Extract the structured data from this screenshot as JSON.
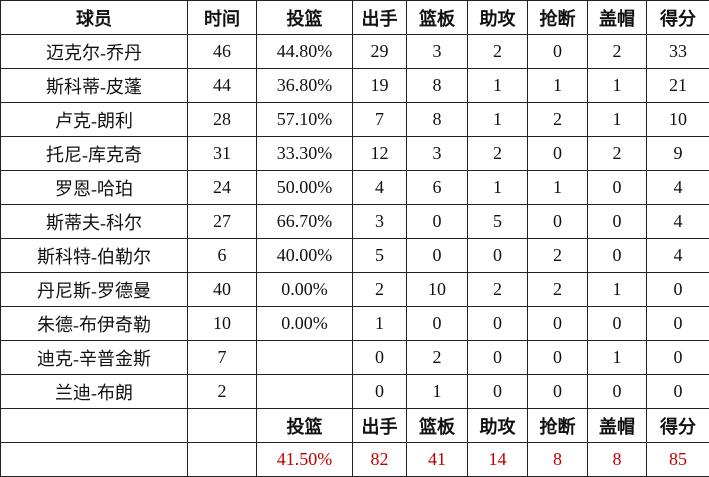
{
  "headers": [
    "球员",
    "时间",
    "投篮",
    "出手",
    "篮板",
    "助攻",
    "抢断",
    "盖帽",
    "得分"
  ],
  "rows": [
    [
      "迈克尔-乔丹",
      "46",
      "44.80%",
      "29",
      "3",
      "2",
      "0",
      "2",
      "33"
    ],
    [
      "斯科蒂-皮蓬",
      "44",
      "36.80%",
      "19",
      "8",
      "1",
      "1",
      "1",
      "21"
    ],
    [
      "卢克-朗利",
      "28",
      "57.10%",
      "7",
      "8",
      "1",
      "2",
      "1",
      "10"
    ],
    [
      "托尼-库克奇",
      "31",
      "33.30%",
      "12",
      "3",
      "2",
      "0",
      "2",
      "9"
    ],
    [
      "罗恩-哈珀",
      "24",
      "50.00%",
      "4",
      "6",
      "1",
      "1",
      "0",
      "4"
    ],
    [
      "斯蒂夫-科尔",
      "27",
      "66.70%",
      "3",
      "0",
      "5",
      "0",
      "0",
      "4"
    ],
    [
      "斯科特-伯勒尔",
      "6",
      "40.00%",
      "5",
      "0",
      "0",
      "2",
      "0",
      "4"
    ],
    [
      "丹尼斯-罗德曼",
      "40",
      "0.00%",
      "2",
      "10",
      "2",
      "2",
      "1",
      "0"
    ],
    [
      "朱德-布伊奇勒",
      "10",
      "0.00%",
      "1",
      "0",
      "0",
      "0",
      "0",
      "0"
    ],
    [
      "迪克-辛普金斯",
      "7",
      "",
      "0",
      "2",
      "0",
      "0",
      "1",
      "0"
    ],
    [
      "兰迪-布朗",
      "2",
      "",
      "0",
      "1",
      "0",
      "0",
      "0",
      "0"
    ]
  ],
  "summary_headers": [
    "",
    "",
    "投篮",
    "出手",
    "篮板",
    "助攻",
    "抢断",
    "盖帽",
    "得分"
  ],
  "totals": [
    "",
    "",
    "41.50%",
    "82",
    "41",
    "14",
    "8",
    "8",
    "85"
  ],
  "colors": {
    "total_text": "#c00000",
    "border": "#222222"
  }
}
